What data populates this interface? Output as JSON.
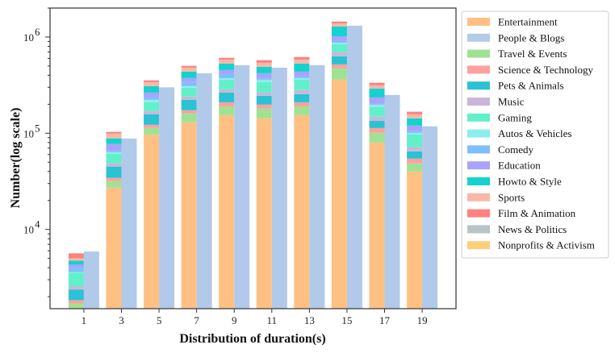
{
  "chart_data": {
    "type": "bar",
    "stacked_note_free": true,
    "xlabel": "Distribution of duration(s)",
    "ylabel": "Number(log scale)",
    "yscale": "log",
    "ylim": [
      1500,
      2000000
    ],
    "xlim": [
      -0.8,
      20.8
    ],
    "grid": false,
    "legend_placement": "outside-right",
    "categories": [
      1,
      3,
      5,
      7,
      9,
      11,
      13,
      15,
      17,
      19
    ],
    "ytick_labels": [
      {
        "value": 10000,
        "base": "10",
        "exp": "4"
      },
      {
        "value": 100000,
        "base": "10",
        "exp": "5"
      },
      {
        "value": 1000000,
        "base": "10",
        "exp": "6"
      }
    ],
    "standalone_series": {
      "name": "People & Blogs",
      "color": "#aec7e8",
      "values": [
        5900,
        88000,
        300000,
        420000,
        510000,
        480000,
        510000,
        1310000,
        250000,
        118000
      ]
    },
    "stacked_series": [
      {
        "name": "Entertainment",
        "color": "#ffbb78",
        "values": [
          1500,
          27200,
          97000,
          130000,
          154000,
          143000,
          154000,
          360000,
          80000,
          40000
        ]
      },
      {
        "name": "Travel & Events",
        "color": "#98df8a",
        "values": [
          200,
          4600,
          16200,
          30600,
          36400,
          37000,
          36400,
          111700,
          20900,
          8600
        ]
      },
      {
        "name": "Science & Technology",
        "color": "#ff9896",
        "values": [
          140,
          2500,
          9100,
          12700,
          19300,
          18300,
          19300,
          47600,
          12300,
          5900
        ]
      },
      {
        "name": "Pets & Animals",
        "color": "#17becf",
        "values": [
          520,
          10700,
          34900,
          49500,
          54600,
          46700,
          44700,
          110600,
          21600,
          10300
        ]
      },
      {
        "name": "Music",
        "color": "#c5b0d5",
        "values": [
          190,
          3600,
          12700,
          17800,
          21200,
          19700,
          25800,
          63600,
          13600,
          6600
        ]
      },
      {
        "name": "Gaming",
        "color": "#55efc4",
        "values": [
          990,
          12600,
          40000,
          56700,
          74200,
          75300,
          79500,
          147500,
          38500,
          25700
        ]
      },
      {
        "name": "Autos & Vehicles",
        "color": "#81ecec",
        "values": [
          70,
          2400,
          12500,
          12000,
          14300,
          20100,
          14300,
          32700,
          11200,
          3900
        ]
      },
      {
        "name": "Comedy",
        "color": "#74b9ff",
        "values": [
          365,
          2500,
          13100,
          31000,
          37700,
          14300,
          14700,
          34200,
          3800,
          4000
        ]
      },
      {
        "name": "Education",
        "color": "#a29bfe",
        "values": [
          325,
          11000,
          29000,
          34300,
          41900,
          45700,
          47500,
          110600,
          33600,
          15000
        ]
      },
      {
        "name": "Howto & Style",
        "color": "#00cec9",
        "values": [
          430,
          11200,
          44400,
          62200,
          75800,
          70000,
          93200,
          265500,
          55600,
          22900
        ]
      },
      {
        "name": "Sports",
        "color": "#fab1a0",
        "values": [
          280,
          10800,
          30900,
          44300,
          53300,
          49900,
          53300,
          103000,
          23600,
          14400
        ]
      },
      {
        "name": "Film & Animation",
        "color": "#ff7675",
        "values": [
          610,
          3900,
          13400,
          19200,
          23000,
          31900,
          35000,
          55000,
          18600,
          9400
        ]
      },
      {
        "name": "News & Politics",
        "color": "#b2bec3",
        "values": [
          30,
          600,
          2000,
          2800,
          3400,
          3300,
          3500,
          8000,
          2000,
          900
        ]
      },
      {
        "name": "Nonprofits & Activism",
        "color": "#fdcb6e",
        "values": [
          20,
          400,
          1200,
          1700,
          2100,
          2000,
          2100,
          5000,
          1200,
          600
        ]
      }
    ],
    "legend_order": [
      "Entertainment",
      "People & Blogs",
      "Travel & Events",
      "Science & Technology",
      "Pets & Animals",
      "Music",
      "Gaming",
      "Autos & Vehicles",
      "Comedy",
      "Education",
      "Howto & Style",
      "Sports",
      "Film & Animation",
      "News & Politics",
      "Nonprofits & Activism"
    ]
  }
}
